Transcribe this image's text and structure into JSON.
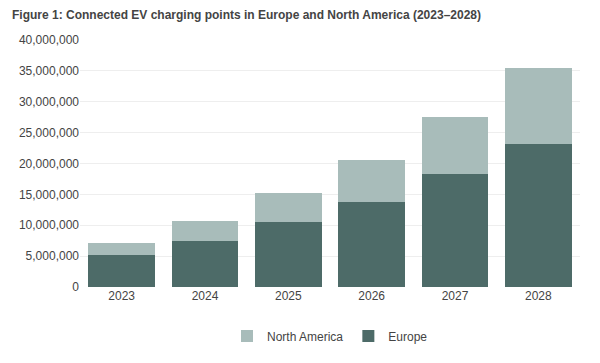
{
  "chart_data": {
    "type": "bar",
    "stacked": true,
    "title": "Figure 1: Connected EV charging points in Europe and North America (2023–2028)",
    "categories": [
      "2023",
      "2024",
      "2025",
      "2026",
      "2027",
      "2028"
    ],
    "series": [
      {
        "name": "Europe",
        "color": "#4d6b68",
        "values": [
          5200000,
          7500000,
          10500000,
          13800000,
          18300000,
          23200000
        ]
      },
      {
        "name": "North America",
        "color": "#a8bcba",
        "values": [
          2000000,
          3200000,
          4800000,
          6800000,
          9200000,
          12300000
        ]
      }
    ],
    "ylim": [
      0,
      40000000
    ],
    "yticks": [
      0,
      {
        "value": 5000000,
        "label": "5,000,000"
      },
      {
        "value": 10000000,
        "label": "10,000,000"
      },
      {
        "value": 15000000,
        "label": "15,000,000"
      },
      {
        "value": 20000000,
        "label": "20,000,000"
      },
      {
        "value": 25000000,
        "label": "25,000,000"
      },
      {
        "value": 30000000,
        "label": "30,000,000"
      },
      {
        "value": 35000000,
        "label": "35,000,000"
      },
      {
        "value": 40000000,
        "label": "40,000,000"
      }
    ],
    "grid": true,
    "legend": "bottom"
  }
}
